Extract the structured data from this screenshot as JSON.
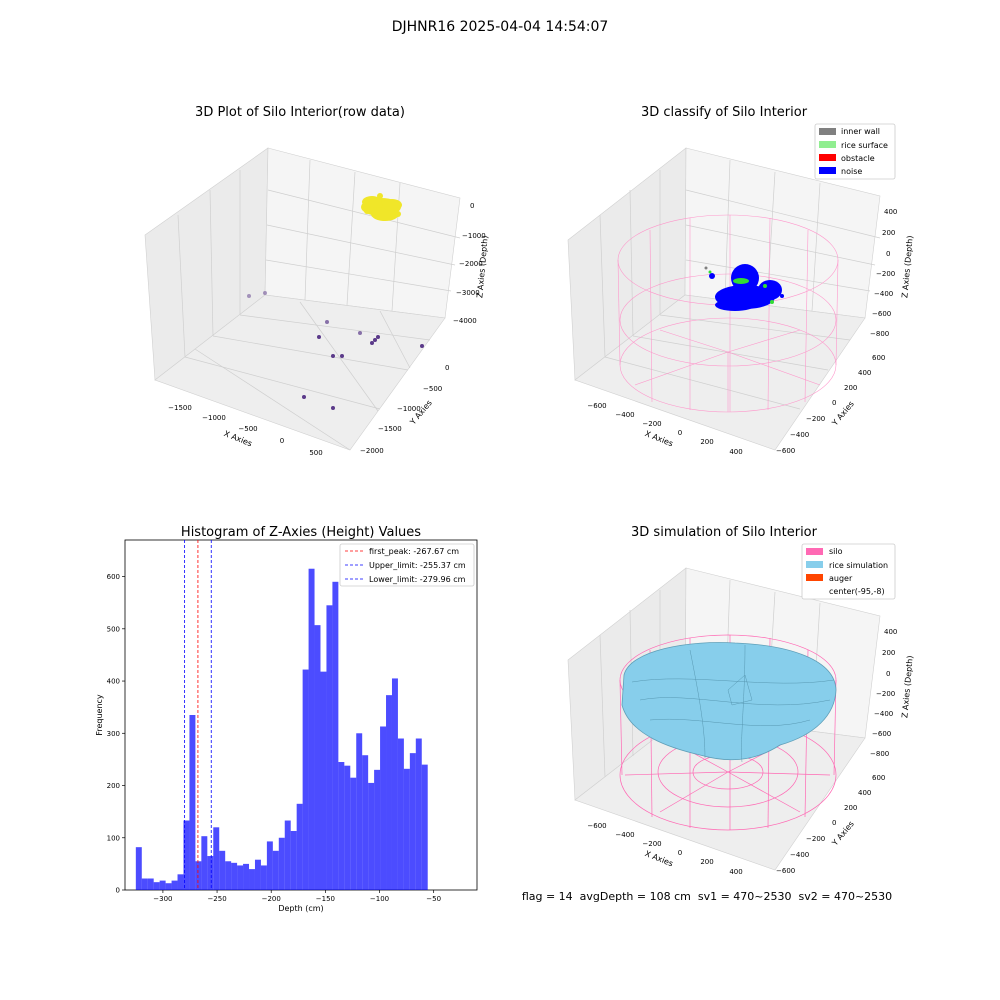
{
  "figure": {
    "suptitle": "DJHNR16 2025-04-04 14:54:07",
    "footer": "flag = 14  avgDepth = 108 cm  sv1 = 470~2530  sv2 = 470~2530"
  },
  "panels": {
    "raw": {
      "title": "3D Plot of Silo Interior(row data)",
      "xlabel": "X Axies",
      "ylabel": "Y Axies",
      "zlabel": "Z Axies (Depth)",
      "xticks": [
        "−1500",
        "−1000",
        "−500",
        "0",
        "500"
      ],
      "yticks": [
        "0",
        "−500",
        "−1000",
        "−1500",
        "−2000"
      ],
      "zticks": [
        "0",
        "−1000",
        "−2000",
        "−3000",
        "−4000"
      ],
      "point_color": "#f0e629",
      "outlier_color": "#5b3a8a"
    },
    "classify": {
      "title": "3D classify of Silo Interior",
      "xlabel": "X Axies",
      "ylabel": "Y Axies",
      "zlabel": "Z Axies (Depth)",
      "xticks": [
        "−600",
        "−400",
        "−200",
        "0",
        "200",
        "400"
      ],
      "yticks": [
        "600",
        "400",
        "200",
        "0",
        "−200",
        "−400",
        "−600"
      ],
      "zticks": [
        "400",
        "200",
        "0",
        "−200",
        "−400",
        "−600",
        "−800"
      ],
      "legend": [
        {
          "label": "inner wall",
          "color": "#808080"
        },
        {
          "label": "rice surface",
          "color": "#90ee90"
        },
        {
          "label": "obstacle",
          "color": "#ff0000"
        },
        {
          "label": "noise",
          "color": "#0000ff"
        }
      ]
    },
    "simulation": {
      "title": "3D simulation of Silo Interior",
      "xlabel": "X Axies",
      "ylabel": "Y Axies",
      "zlabel": "Z Axies (Depth)",
      "xticks": [
        "−600",
        "−400",
        "−200",
        "0",
        "200",
        "400"
      ],
      "yticks": [
        "600",
        "400",
        "200",
        "0",
        "−200",
        "−400",
        "−600"
      ],
      "zticks": [
        "400",
        "200",
        "0",
        "−200",
        "−400",
        "−600",
        "−800"
      ],
      "legend": [
        {
          "label": "silo",
          "color": "#ff69b4"
        },
        {
          "label": "rice simulation",
          "color": "#87ceeb"
        },
        {
          "label": "auger",
          "color": "#ff4500"
        },
        {
          "label": "center(-95,-8)",
          "color": "none"
        }
      ]
    }
  },
  "chart_data": [
    {
      "type": "bar",
      "title": "Histogram of Z-Axies (Height) Values",
      "xlabel": "Depth (cm)",
      "ylabel": "Frequency",
      "bar_color": "#0000ff",
      "bin_start": -325,
      "bin_width": 5.5,
      "xlim": [
        -335,
        -10
      ],
      "ylim": [
        0,
        670
      ],
      "xticks": [
        -300,
        -250,
        -200,
        -150,
        -100,
        -50
      ],
      "xtick_labels": [
        "−300",
        "−250",
        "−200",
        "−150",
        "−100",
        "−50"
      ],
      "yticks": [
        0,
        100,
        200,
        300,
        400,
        500,
        600
      ],
      "values": [
        82,
        22,
        22,
        15,
        18,
        13,
        18,
        30,
        133,
        335,
        55,
        103,
        65,
        120,
        75,
        55,
        52,
        47,
        50,
        40,
        58,
        47,
        93,
        75,
        100,
        133,
        113,
        165,
        422,
        615,
        507,
        418,
        545,
        590,
        245,
        238,
        215,
        300,
        258,
        205,
        230,
        313,
        373,
        405,
        290,
        232,
        262,
        290,
        240
      ],
      "vlines": [
        {
          "x": -267.67,
          "color": "#ff0000",
          "label": "first_peak: -267.67 cm"
        },
        {
          "x": -255.37,
          "color": "#0000ff",
          "label": "Upper_limit: -255.37 cm"
        },
        {
          "x": -279.96,
          "color": "#0000ff",
          "label": "Lower_limit: -279.96 cm"
        }
      ]
    }
  ]
}
